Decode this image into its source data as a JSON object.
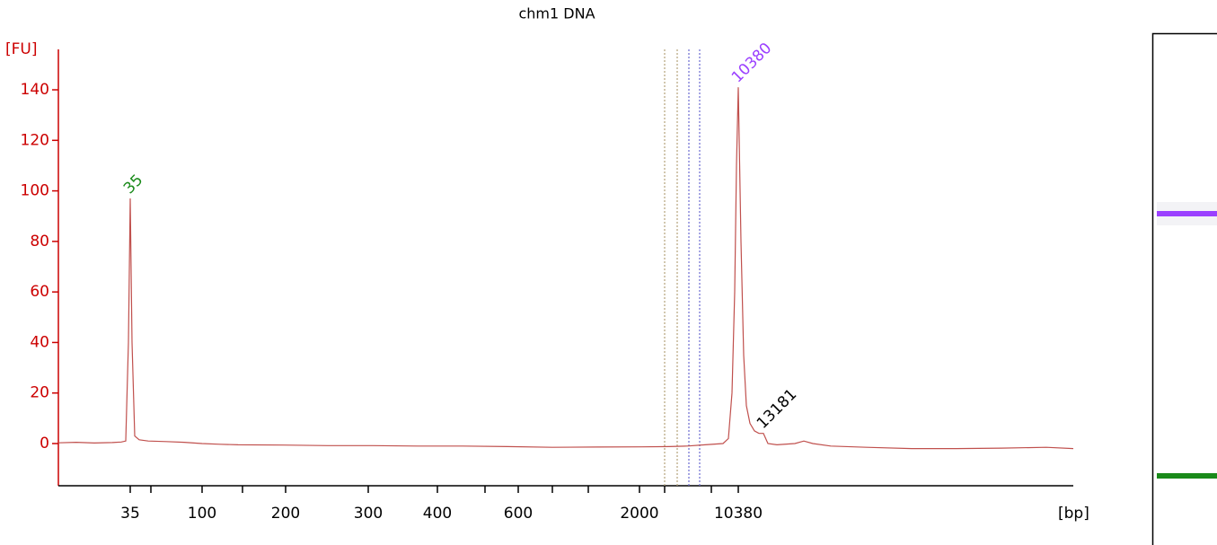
{
  "chart_data": {
    "type": "line",
    "title": "chm1 DNA",
    "y_label": "[FU]",
    "x_label": "[bp]",
    "x": [
      0,
      2,
      4,
      6,
      7,
      7.5,
      7.8,
      8,
      8.2,
      8.5,
      9,
      10,
      12,
      14,
      16,
      18,
      20,
      25,
      30,
      35,
      40,
      45,
      50,
      55,
      60,
      65,
      68,
      70,
      72,
      74,
      74.6,
      75,
      75.3,
      75.5,
      75.7,
      76,
      76.3,
      76.6,
      77,
      77.5,
      78,
      78.5,
      79,
      80,
      82,
      83,
      84,
      86,
      90,
      95,
      100,
      105,
      110,
      113
    ],
    "series": [
      {
        "color": "#c0504d",
        "values": [
          0.3,
          0.5,
          0.2,
          0.4,
          0.6,
          1,
          40,
          97,
          40,
          3,
          1.5,
          1,
          0.8,
          0.5,
          0,
          -0.3,
          -0.5,
          -0.6,
          -0.8,
          -0.8,
          -1,
          -1,
          -1.2,
          -1.5,
          -1.4,
          -1.3,
          -1.2,
          -1,
          -0.5,
          0,
          2,
          20,
          60,
          110,
          141,
          80,
          35,
          15,
          8,
          5,
          4,
          4,
          0,
          -0.5,
          0,
          1,
          0,
          -1,
          -1.5,
          -2,
          -2,
          -1.8,
          -1.5,
          -2
        ]
      }
    ],
    "xlim": [
      0,
      113
    ],
    "ylim": [
      -16.7,
      156
    ],
    "yticks": [
      0,
      20,
      40,
      60,
      80,
      100,
      120,
      140
    ],
    "xticks": [
      {
        "value": 8,
        "label": "35"
      },
      {
        "value": 16,
        "label": "100"
      },
      {
        "value": 25.3,
        "label": "200"
      },
      {
        "value": 34.5,
        "label": "300"
      },
      {
        "value": 42.2,
        "label": "400"
      },
      {
        "value": 51.2,
        "label": "600"
      },
      {
        "value": 64.7,
        "label": "2000"
      },
      {
        "value": 75.7,
        "label": "10380"
      }
    ],
    "xminorticks": [
      10.3,
      20.5,
      47.5,
      55,
      59,
      67.5,
      72.7
    ],
    "markers": [
      {
        "x": 67.5,
        "color": "#b5a27a"
      },
      {
        "x": 68.9,
        "color": "#b5a27a"
      },
      {
        "x": 70.2,
        "color": "#6a6ad0"
      },
      {
        "x": 71.4,
        "color": "#6a6ad0"
      }
    ],
    "peaks": [
      {
        "label": "35",
        "x": 8,
        "y": 97,
        "color": "#1a8a1a"
      },
      {
        "label": "10380",
        "x": 75.7,
        "y": 141,
        "color": "#9b40ff"
      },
      {
        "label": "13181",
        "x": 78.5,
        "y": 4,
        "color": "#000000"
      }
    ]
  }
}
